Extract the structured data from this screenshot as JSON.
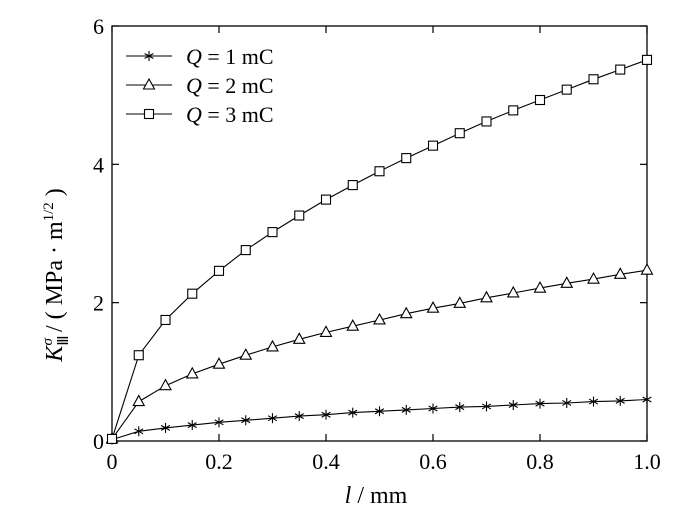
{
  "chart_data": {
    "type": "line",
    "xlabel": {
      "var": "l",
      "unit": " / mm"
    },
    "ylabel": {
      "var": "K",
      "sub": "Ⅲ",
      "sup": "σ",
      "unit_pre": " / ( MPa · m",
      "unit_sup": "1/2",
      "unit_post": " )"
    },
    "xlim": [
      0,
      1.0
    ],
    "ylim": [
      0,
      6
    ],
    "xticks": [
      0,
      0.2,
      0.4,
      0.6,
      0.8,
      1.0
    ],
    "xtick_labels": [
      "0",
      "0.2",
      "0.4",
      "0.6",
      "0.8",
      "1.0"
    ],
    "yticks": [
      0,
      2,
      4,
      6
    ],
    "ytick_labels": [
      "0",
      "2",
      "4",
      "6"
    ],
    "grid": false,
    "legend_position": "top-left",
    "x": [
      0,
      0.05,
      0.1,
      0.15,
      0.2,
      0.25,
      0.3,
      0.35,
      0.4,
      0.45,
      0.5,
      0.55,
      0.6,
      0.65,
      0.7,
      0.75,
      0.8,
      0.85,
      0.9,
      0.95,
      1.0
    ],
    "series": [
      {
        "name_var": "Q",
        "name_rest": " = 1 mC",
        "marker": "star",
        "values": [
          0.02,
          0.14,
          0.19,
          0.23,
          0.27,
          0.3,
          0.33,
          0.36,
          0.38,
          0.41,
          0.43,
          0.45,
          0.47,
          0.49,
          0.5,
          0.52,
          0.54,
          0.55,
          0.57,
          0.58,
          0.6
        ]
      },
      {
        "name_var": "Q",
        "name_rest": " = 2 mC",
        "marker": "triangle",
        "values": [
          0.03,
          0.57,
          0.8,
          0.97,
          1.11,
          1.24,
          1.36,
          1.47,
          1.57,
          1.66,
          1.75,
          1.84,
          1.92,
          1.99,
          2.07,
          2.14,
          2.21,
          2.28,
          2.34,
          2.41,
          2.47
        ]
      },
      {
        "name_var": "Q",
        "name_rest": " = 3 mC",
        "marker": "square",
        "values": [
          0.03,
          1.24,
          1.75,
          2.13,
          2.46,
          2.76,
          3.02,
          3.26,
          3.49,
          3.7,
          3.9,
          4.09,
          4.27,
          4.45,
          4.62,
          4.78,
          4.93,
          5.08,
          5.23,
          5.37,
          5.51
        ]
      }
    ]
  }
}
